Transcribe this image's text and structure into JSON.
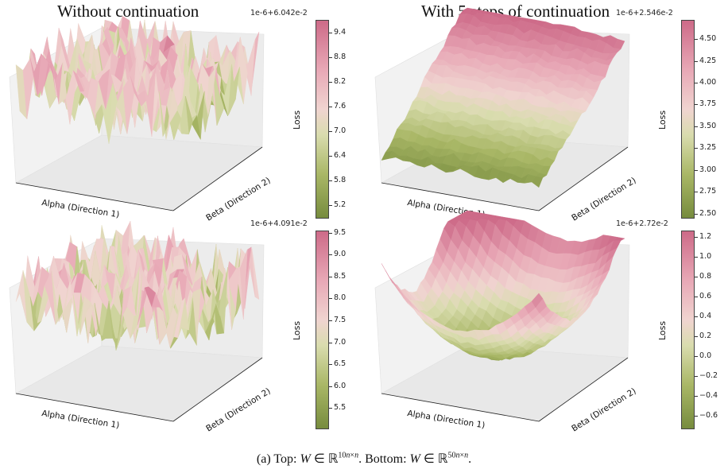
{
  "titles": {
    "left": "Without continuation",
    "right": "With 5 steps of continuation"
  },
  "caption": {
    "text": "(a) Top: W ∈ ℝ10n×n. Bottom: W ∈ ℝ50n×n."
  },
  "colors": {
    "low": "#778c3e",
    "mid": "#f0d4d0",
    "high": "#cd6a88"
  },
  "chart_data": [
    {
      "type": "surface",
      "panel": "top-left",
      "xlabel": "Alpha (Direction 1)",
      "ylabel": "Beta (Direction 2)",
      "zlabel": "Loss",
      "colorbar": {
        "offset": "1e-6+6.042e-2",
        "ticks": [
          "9.4",
          "8.8",
          "8.2",
          "7.6",
          "7.0",
          "6.4",
          "5.8",
          "5.2"
        ],
        "range": [
          4.9,
          9.7
        ]
      },
      "surface_kind": "noisy"
    },
    {
      "type": "surface",
      "panel": "top-right",
      "xlabel": "Alpha (Direction 1)",
      "ylabel": "Beta (Direction 2)",
      "zlabel": "Loss",
      "colorbar": {
        "offset": "1e-6+2.546e-2",
        "ticks": [
          "4.50",
          "4.25",
          "4.00",
          "3.75",
          "3.50",
          "3.25",
          "3.00",
          "2.75",
          "2.50"
        ],
        "range": [
          2.46,
          4.72
        ]
      },
      "surface_kind": "slope"
    },
    {
      "type": "surface",
      "panel": "bottom-left",
      "xlabel": "Alpha (Direction 1)",
      "ylabel": "Beta (Direction 2)",
      "zlabel": "Loss",
      "colorbar": {
        "offset": "1e-6+4.091e-2",
        "ticks": [
          "9.5",
          "9.0",
          "8.5",
          "8.0",
          "7.5",
          "7.0",
          "6.5",
          "6.0",
          "5.5"
        ],
        "range": [
          5.05,
          9.55
        ]
      },
      "surface_kind": "noisy"
    },
    {
      "type": "surface",
      "panel": "bottom-right",
      "xlabel": "Alpha (Direction 1)",
      "ylabel": "Beta (Direction 2)",
      "zlabel": "Loss",
      "colorbar": {
        "offset": "1e-6+2.72e-2",
        "ticks": [
          "1.2",
          "1.0",
          "0.8",
          "0.6",
          "0.4",
          "0.2",
          "0.0",
          "−0.2",
          "−0.4",
          "−0.6"
        ],
        "range": [
          -0.72,
          1.26
        ]
      },
      "surface_kind": "bowl"
    }
  ]
}
